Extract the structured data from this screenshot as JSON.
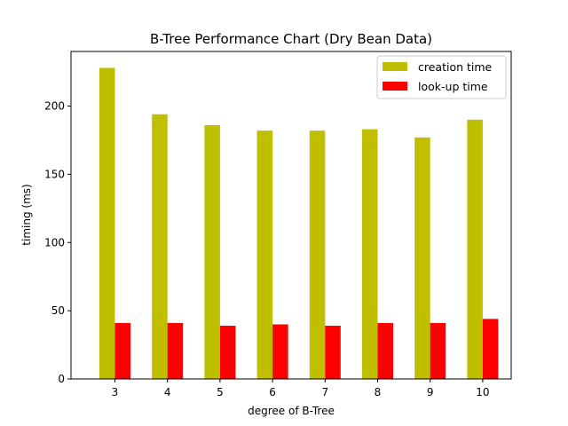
{
  "chart_data": {
    "type": "bar",
    "title": "B-Tree Performance Chart (Dry Bean Data)",
    "xlabel": "degree of B-Tree",
    "ylabel": "timing (ms)",
    "categories": [
      "3",
      "4",
      "5",
      "6",
      "7",
      "8",
      "9",
      "10"
    ],
    "series": [
      {
        "name": "creation time",
        "color": "#bfbf00",
        "values": [
          228,
          194,
          186,
          182,
          182,
          183,
          177,
          190
        ]
      },
      {
        "name": "look-up time",
        "color": "#ff0000",
        "values": [
          41,
          41,
          39,
          40,
          39,
          41,
          41,
          44
        ]
      }
    ],
    "ylim": [
      0,
      240
    ],
    "yticks": [
      0,
      50,
      100,
      150,
      200
    ],
    "grid": false,
    "legend": "top-right"
  }
}
